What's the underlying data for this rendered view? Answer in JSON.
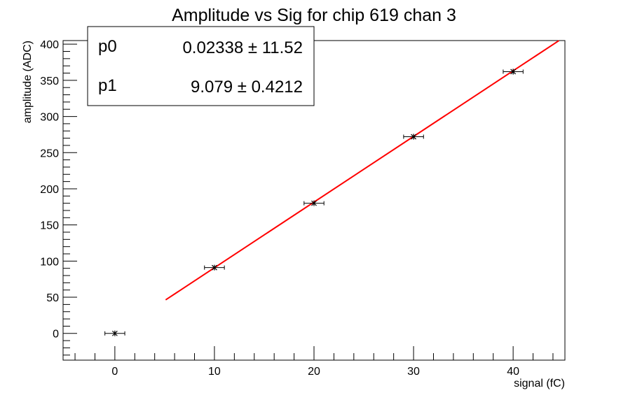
{
  "chart_data": {
    "type": "scatter",
    "title": "Amplitude vs Sig for chip 619 chan 3",
    "xlabel": "signal (fC)",
    "ylabel": "amplitude (ADC)",
    "xlim": [
      -5.2,
      45.2
    ],
    "ylim": [
      -37,
      405
    ],
    "x_ticks": [
      0,
      10,
      20,
      30,
      40
    ],
    "x_tick_labels": [
      "0",
      "10",
      "20",
      "30",
      "40"
    ],
    "y_ticks": [
      0,
      50,
      100,
      150,
      200,
      250,
      300,
      350,
      400
    ],
    "y_tick_labels": [
      "0",
      "50",
      "100",
      "150",
      "200",
      "250",
      "300",
      "350",
      "400"
    ],
    "grid": false,
    "series": [
      {
        "kind": "points-with-errors",
        "color": "#000000",
        "points": [
          {
            "x": 0,
            "y": 0,
            "xerr": 1,
            "yerr": 1.5
          },
          {
            "x": 10,
            "y": 91,
            "xerr": 1,
            "yerr": 2
          },
          {
            "x": 20,
            "y": 180,
            "xerr": 1,
            "yerr": 3
          },
          {
            "x": 30,
            "y": 272,
            "xerr": 1,
            "yerr": 4
          },
          {
            "x": 40,
            "y": 362,
            "xerr": 1,
            "yerr": 4
          }
        ]
      },
      {
        "kind": "fit-line",
        "color": "#ff0000",
        "x_start": 5.1,
        "x_end": 44.6,
        "p0": 0.02338,
        "p1": 9.079
      }
    ],
    "stats_box": {
      "placement": "top-left",
      "rows": [
        {
          "name": "p0",
          "value": "0.02338 ± 11.52"
        },
        {
          "name": "p1",
          "value": "9.079 ± 0.4212"
        }
      ]
    }
  }
}
